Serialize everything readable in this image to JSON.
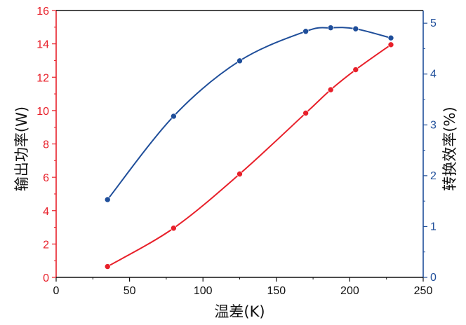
{
  "chart_data": {
    "type": "line",
    "xlabel": "温差(K)",
    "ylabel_left": "输出功率(W)",
    "ylabel_right": "转换效率(%)",
    "xlim": [
      0,
      250
    ],
    "ylim_left": [
      0,
      16
    ],
    "ylim_right": [
      0,
      5.25
    ],
    "x_ticks": [
      0,
      50,
      100,
      150,
      200,
      250
    ],
    "y_left_ticks": [
      0,
      2,
      4,
      6,
      8,
      10,
      12,
      14,
      16
    ],
    "y_right_ticks": [
      0,
      1,
      2,
      3,
      4,
      5
    ],
    "grid": false,
    "colors": {
      "left_axis": "#e8202a",
      "right_axis": "#1f4e9a"
    },
    "series": [
      {
        "axis": "left",
        "color": "#e8202a",
        "x": [
          35,
          80,
          125,
          170,
          187,
          204,
          228
        ],
        "values": [
          0.65,
          2.95,
          6.2,
          9.85,
          11.25,
          12.45,
          13.95
        ]
      },
      {
        "axis": "right",
        "color": "#1f4e9a",
        "x": [
          35,
          80,
          125,
          170,
          187,
          204,
          228
        ],
        "values": [
          1.53,
          3.17,
          4.26,
          4.84,
          4.91,
          4.89,
          4.71
        ]
      }
    ]
  }
}
